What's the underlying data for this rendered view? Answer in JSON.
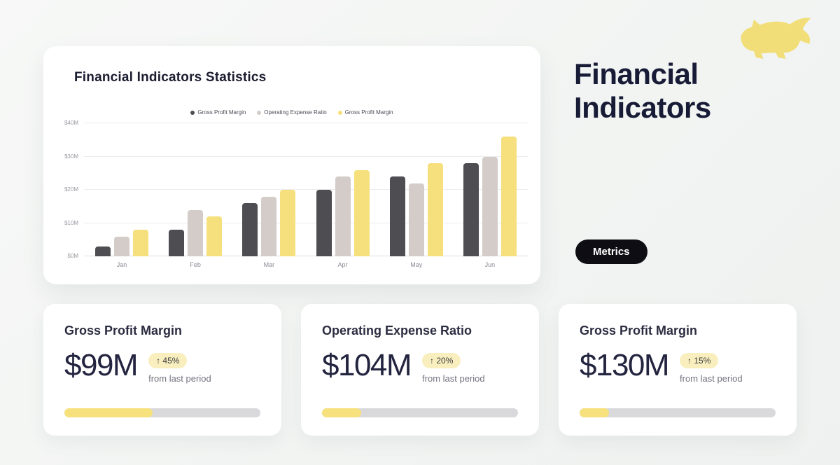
{
  "page": {
    "logo_icon": "bull-icon"
  },
  "chart_card": {
    "title": "Financial Indicators Statistics",
    "legend": [
      {
        "label": "Gross Profit Margin",
        "color": "#4d4d52"
      },
      {
        "label": "Operating Expense Ratio",
        "color": "#d3ccc8"
      },
      {
        "label": "Gross Profit Margin",
        "color": "#f6e07d"
      }
    ]
  },
  "chart_data": {
    "type": "bar",
    "title": "Financial Indicators Statistics",
    "categories": [
      "Jan",
      "Feb",
      "Mar",
      "Apr",
      "May",
      "Jun"
    ],
    "series": [
      {
        "name": "Gross Profit Margin",
        "color": "#4d4d52",
        "values": [
          3,
          8,
          16,
          20,
          24,
          28
        ]
      },
      {
        "name": "Operating Expense Ratio",
        "color": "#d3ccc8",
        "values": [
          6,
          14,
          18,
          24,
          22,
          30
        ]
      },
      {
        "name": "Gross Profit Margin",
        "color": "#f6e07d",
        "values": [
          8,
          12,
          20,
          26,
          28,
          36
        ]
      }
    ],
    "xlabel": "",
    "ylabel": "",
    "ylim": [
      0,
      40
    ],
    "yticks": [
      "$0M",
      "$10M",
      "$20M",
      "$30M",
      "$40M"
    ],
    "grid": true,
    "legend_position": "top"
  },
  "hero": {
    "title_line1": "Financial",
    "title_line2": "Indicators",
    "button": "Metrics"
  },
  "stat_cards": [
    {
      "title": "Gross Profit Margin",
      "value": "$99M",
      "delta": "↑ 45%",
      "caption": "from last period",
      "progress": 45
    },
    {
      "title": "Operating Expense Ratio",
      "value": "$104M",
      "delta": "↑ 20%",
      "caption": "from last period",
      "progress": 20
    },
    {
      "title": "Gross Profit Margin",
      "value": "$130M",
      "delta": "↑ 15%",
      "caption": "from last period",
      "progress": 15
    }
  ]
}
